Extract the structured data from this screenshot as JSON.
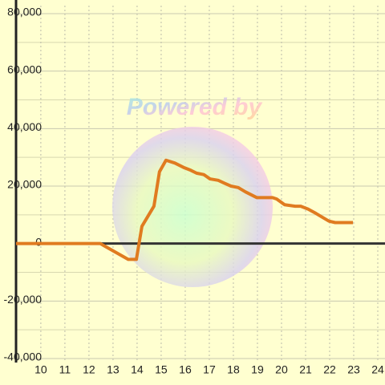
{
  "chart_data": {
    "type": "line",
    "watermark": "Powered by",
    "x": [
      8.97,
      12.2,
      12.47,
      13.63,
      13.97,
      14.2,
      14.7,
      14.93,
      15.2,
      15.57,
      15.93,
      16.23,
      16.47,
      16.77,
      17.03,
      17.37,
      17.63,
      17.9,
      18.2,
      18.5,
      18.97,
      19.63,
      19.8,
      20.13,
      20.57,
      20.8,
      21.1,
      21.43,
      21.73,
      21.97,
      22.23,
      22.97
    ],
    "values": [
      0,
      0,
      0,
      -5500,
      -5500,
      6000,
      13000,
      25000,
      29000,
      28000,
      26500,
      25500,
      24500,
      24000,
      22500,
      22000,
      21000,
      20000,
      19500,
      18000,
      16000,
      16000,
      15500,
      13500,
      13000,
      13000,
      12000,
      10500,
      9000,
      7800,
      7300,
      7300
    ],
    "color": "#e07b20",
    "xlim": [
      8.97,
      24.3
    ],
    "ylim": [
      -40000,
      80000
    ],
    "xticks": [
      10,
      11,
      12,
      13,
      14,
      15,
      16,
      17,
      18,
      19,
      20,
      21,
      22,
      23,
      24
    ],
    "yticks": [
      {
        "value": -40000,
        "label": "-40,000"
      },
      {
        "value": -20000,
        "label": "-20,000"
      },
      0,
      {
        "value": 20000,
        "label": "20,000"
      },
      {
        "value": 40000,
        "label": "40,000"
      },
      {
        "value": 60000,
        "label": "60,000"
      },
      {
        "value": 80000,
        "label": "80,000"
      }
    ],
    "y_minor_ticks": [
      -30000,
      -10000,
      10000,
      30000,
      50000,
      70000
    ],
    "grid": true
  }
}
